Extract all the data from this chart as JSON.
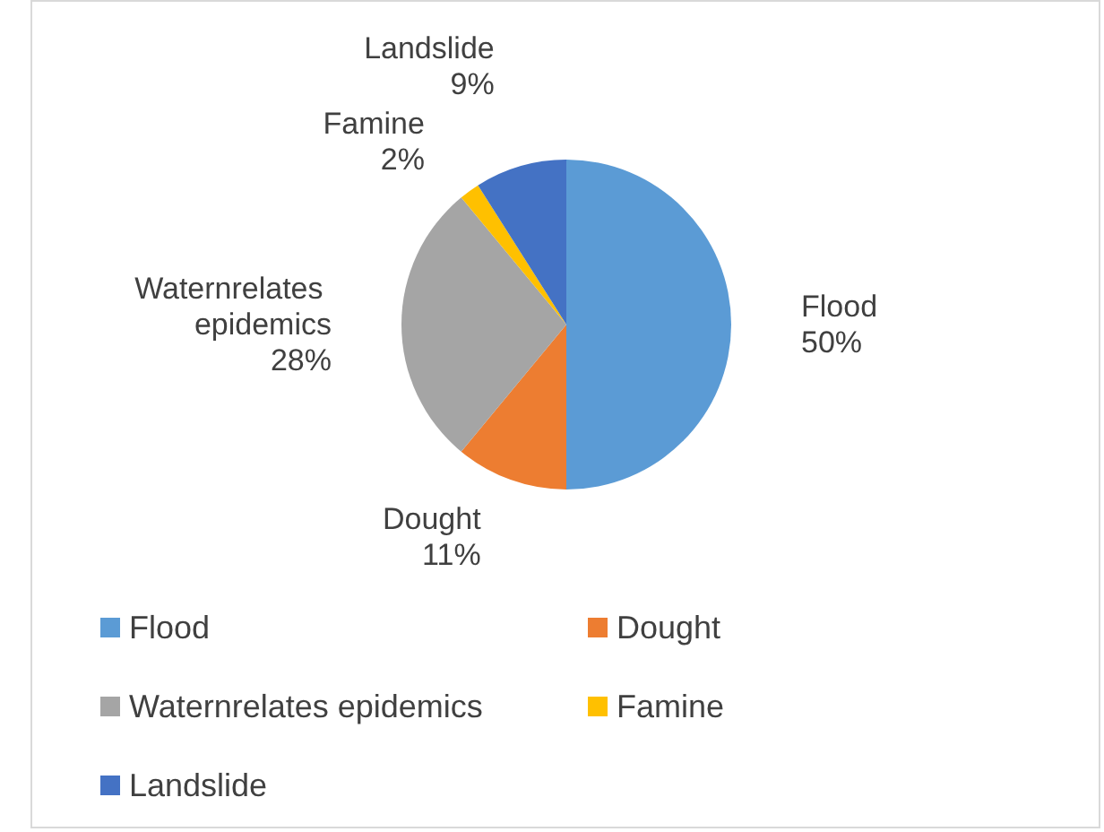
{
  "chart_data": {
    "type": "pie",
    "categories": [
      "Flood",
      "Dought",
      "Waternrelates epidemics",
      "Famine",
      "Landslide"
    ],
    "values": [
      50,
      11,
      28,
      2,
      9
    ],
    "colors": [
      "#5b9bd5",
      "#ed7d31",
      "#a5a5a5",
      "#ffc000",
      "#4472c4"
    ],
    "value_labels": [
      "50%",
      "11%",
      "28%",
      "2%",
      "9%"
    ],
    "legend": "bottom",
    "data_labels": true
  }
}
